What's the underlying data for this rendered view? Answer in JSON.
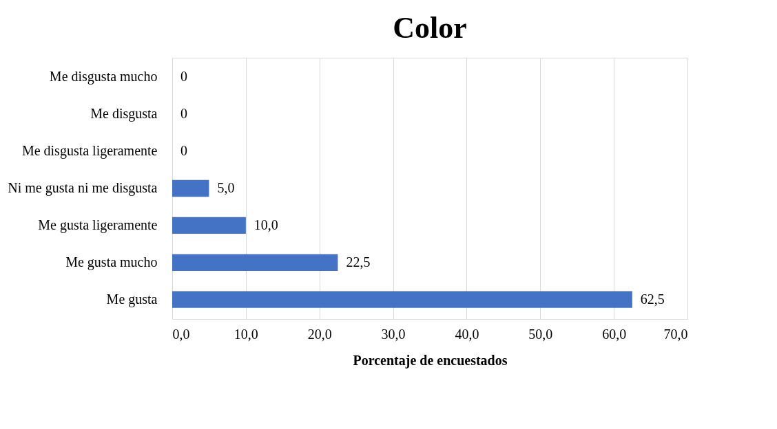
{
  "chart_data": {
    "type": "bar",
    "orientation": "horizontal",
    "title": "Color",
    "xlabel": "Porcentaje de encuestados",
    "categories": [
      "Me disgusta mucho",
      "Me disgusta",
      "Me disgusta ligeramente",
      "Ni me gusta ni me disgusta",
      "Me gusta ligeramente",
      "Me gusta mucho",
      "Me gusta"
    ],
    "values": [
      0,
      0,
      0,
      5.0,
      10.0,
      22.5,
      62.5
    ],
    "value_labels": [
      "0",
      "0",
      "0",
      "5,0",
      "10,0",
      "22,5",
      "62,5"
    ],
    "color": "#4472c4",
    "xlim": [
      0,
      70
    ],
    "xticks": [
      {
        "value": 0,
        "label": "0,0"
      },
      {
        "value": 10,
        "label": "10,0"
      },
      {
        "value": 20,
        "label": "20,0"
      },
      {
        "value": 30,
        "label": "30,0"
      },
      {
        "value": 40,
        "label": "40,0"
      },
      {
        "value": 50,
        "label": "50,0"
      },
      {
        "value": 60,
        "label": "60,0"
      },
      {
        "value": 70,
        "label": "70,0"
      }
    ],
    "grid": "x"
  }
}
